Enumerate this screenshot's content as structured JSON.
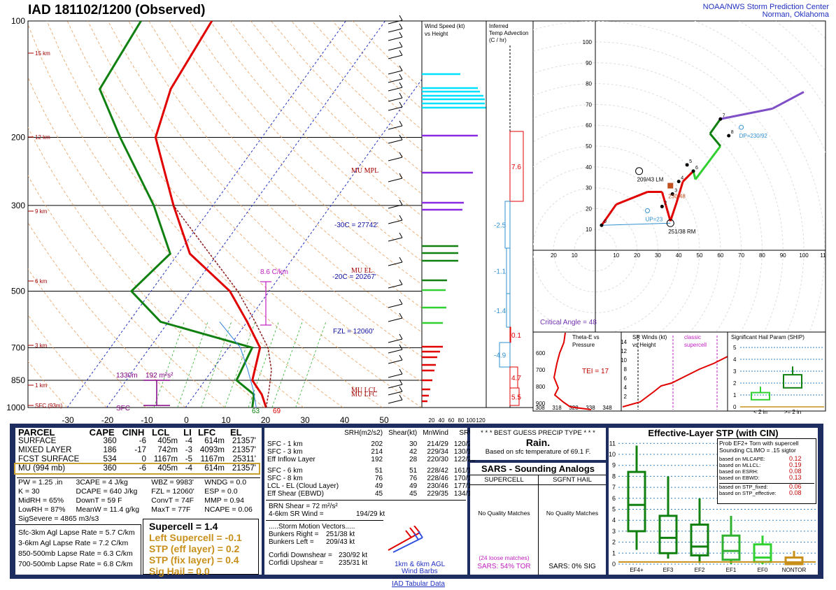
{
  "header": {
    "title": "IAD   181102/1200  (Observed)",
    "org_line1": "NOAA/NWS Storm Prediction Center",
    "org_line2": "Norman, Oklahoma"
  },
  "skewt": {
    "pressure_labels": [
      "100",
      "200",
      "300",
      "500",
      "700",
      "850",
      "1000"
    ],
    "height_labels": [
      "15 km",
      "12 km",
      "9 km",
      "6 km",
      "3 km",
      "1 km",
      "SFC (93m)"
    ],
    "temp_ticks": [
      "-30",
      "-20",
      "-10",
      "0",
      "10",
      "20",
      "30",
      "40",
      "50"
    ],
    "annotations": {
      "mu_mpl": "MU  MPL",
      "mu_el": "MU  EL",
      "mu_lcl": "MU  LCL",
      "mu_lfc": "MU  LFC",
      "t30": "-30C = 27742'",
      "t20": "-20C = 20267'",
      "fzl": "FZL = 12060'",
      "lapse": "8.6 C/km",
      "eff_inflow_left": "1330m",
      "eff_inflow_right": "192 m²s²",
      "sfc": "SFC",
      "sfc_t": "69",
      "sfc_td": "63"
    }
  },
  "wind_panel": {
    "title1": "Wind Speed (kt)",
    "title2": "vs Height",
    "axis": [
      "20",
      "40",
      "60",
      "80",
      "100",
      "120"
    ]
  },
  "adv_panel": {
    "title1": "Inferred",
    "title2": "Temp Advection",
    "title3": "(C / hr)",
    "values": [
      "7.6",
      "-2.5",
      "-1.1",
      "-1.4",
      "0.1",
      "-4.9",
      "4.7",
      "5.5"
    ]
  },
  "hodo": {
    "labels": [
      "209/43 LM",
      "251/38 RM",
      "230/48",
      "DP=230/92",
      "UP=23"
    ],
    "critical_angle": "Critical Angle = 48",
    "rings": [
      "10",
      "20",
      "30",
      "40",
      "50",
      "60",
      "70",
      "80",
      "90",
      "100"
    ],
    "xticks": [
      "20",
      "10",
      "10",
      "20",
      "30",
      "40",
      "50",
      "60",
      "70",
      "80",
      "90",
      "100",
      "110"
    ],
    "hgt": [
      "0",
      "2",
      "3",
      "4",
      "5",
      "6",
      "7",
      "8"
    ]
  },
  "theta": {
    "title1": "Theta-E vs",
    "title2": "Pressure",
    "tei": "TEI = 17",
    "press": [
      "600",
      "700",
      "800",
      "900"
    ],
    "temps": [
      "308",
      "318",
      "328",
      "338",
      "348"
    ]
  },
  "srwinds": {
    "title1": "SR Winds (kt)",
    "title2": "vs Height",
    "classic1": "classic",
    "classic2": "supercell",
    "h": [
      "14",
      "12",
      "10",
      "8",
      "6",
      "4",
      "2"
    ]
  },
  "ship": {
    "title": "Significant Hail Param (SHIP)",
    "y": [
      "5",
      "4",
      "3",
      "2",
      "1",
      "0"
    ],
    "x1": "< 2 in",
    "x2": ">= 2 in"
  },
  "parcel": {
    "headers": [
      "PARCEL",
      "CAPE",
      "CINH",
      "LCL",
      "LI",
      "LFC",
      "EL"
    ],
    "rows": [
      [
        "SURFACE",
        "360",
        "-6",
        "405m",
        "-4",
        "614m",
        "21357'"
      ],
      [
        "MIXED LAYER",
        "186",
        "-17",
        "742m",
        "-3",
        "4093m",
        "21357'"
      ],
      [
        "FCST SURFACE",
        "534",
        "0",
        "1167m",
        "-5",
        "1167m",
        "25311'"
      ],
      [
        "MU  (994 mb)",
        "360",
        "-6",
        "405m",
        "-4",
        "614m",
        "21357'"
      ]
    ],
    "idx": [
      [
        "PW = 1.25 .in",
        "3CAPE = 4 J/kg",
        "WBZ = 9983'",
        "WNDG = 0.0"
      ],
      [
        "K = 30",
        "DCAPE = 640 J/kg",
        "FZL = 12060'",
        "ESP = 0.0"
      ],
      [
        "MidRH = 65%",
        "DownT = 59 F",
        "ConvT = 74F",
        "MMP = 0.94"
      ],
      [
        "LowRH = 87%",
        "MeanW = 11.4 g/kg",
        "MaxT = 77F",
        "NCAPE = 0.06"
      ]
    ],
    "sigsevere": "SigSevere = 4865 m3/s3",
    "lapse": [
      [
        "Sfc-3km Agl Lapse Rate =",
        "5.7 C/km"
      ],
      [
        "3-6km Agl Lapse Rate =",
        "7.2 C/km"
      ],
      [
        "850-500mb Lapse Rate =",
        "6.3 C/km"
      ],
      [
        "700-500mb Lapse Rate =",
        "6.8 C/km"
      ]
    ],
    "composite": {
      "supercell": "Supercell = 1.4",
      "lsc": "Left Supercell = -0.1",
      "stp_eff": "STP (eff layer) = 0.2",
      "stp_fix": "STP (fix layer) = 0.4",
      "sighail": "Sig Hail = 0.0"
    }
  },
  "kinematics": {
    "headers": [
      "SRH(m2/s2)",
      "Shear(kt)",
      "MnWind",
      "SRW"
    ],
    "rows": [
      [
        "SFC - 1 km",
        "202",
        "30",
        "214/29",
        "120/23"
      ],
      [
        "SFC - 3 km",
        "214",
        "42",
        "229/34",
        "130/14"
      ],
      [
        "Eff Inflow Layer",
        "192",
        "28",
        "220/30",
        "122/20"
      ],
      [
        "",
        "",
        " ",
        "",
        ""
      ],
      [
        "SFC - 6 km",
        "51",
        "51",
        "228/42",
        "161/16"
      ],
      [
        "SFC - 8 km",
        "76",
        "76",
        "228/46",
        "170/17"
      ],
      [
        "LCL - EL (Cloud Layer)",
        "49",
        "49",
        "230/46",
        "177/17"
      ],
      [
        "Eff Shear (EBWD)",
        "45",
        "45",
        "229/35",
        "134/14"
      ]
    ],
    "brn": "BRN Shear =  72 m²/s²",
    "srwind": "4-6km SR Wind =",
    "srwind_v": "194/29 kt",
    "storm_title": ".....Storm Motion Vectors.....",
    "br": "Bunkers Right =",
    "br_v": "251/38 kt",
    "bl": "Bunkers Left =",
    "bl_v": "209/43 kt",
    "cd": "Corfidi Downshear =",
    "cd_v": "230/92 kt",
    "cu": "Corfidi Upshear =",
    "cu_v": "235/31 kt",
    "barb_label1": "1km & 6km AGL",
    "barb_label2": "Wind Barbs"
  },
  "precip": {
    "title": "* * * BEST GUESS PRECIP TYPE * * *",
    "type": "Rain.",
    "basis": "Based on sfc temperature of 69.1 F."
  },
  "sars": {
    "title": "SARS - Sounding Analogs",
    "col1": "SUPERCELL",
    "col2": "SGFNT HAIL",
    "nq1": "No Quality Matches",
    "nq2": "No Quality Matches",
    "loose": "(24 loose matches)",
    "tor": "SARS:  54% TOR",
    "sig": "SARS:  0% SIG"
  },
  "stp": {
    "title": "Effective-Layer STP (with CIN)",
    "prob1": "Prob EF2+ Torn with supercell",
    "prob2": "Sounding CLIMO = .15 sigtor",
    "items": [
      [
        "based on MLCAPE:",
        "0.12"
      ],
      [
        "based on MLLCL:",
        "0.19"
      ],
      [
        "based on ESRH:",
        "0.08"
      ],
      [
        "based on EBWD:",
        "0.13"
      ],
      [
        "based on STP_fixed:",
        "0.06"
      ],
      [
        "based on STP_effective:",
        "0.08"
      ]
    ],
    "y": [
      "11",
      "10",
      "9",
      "8",
      "7",
      "6",
      "5",
      "4",
      "3",
      "2",
      "1",
      "0"
    ],
    "cats": [
      "EF4+",
      "EF3",
      "EF2",
      "EF1",
      "EF0",
      "NONTOR"
    ]
  },
  "footer": "IAD Tabular Data",
  "chart_data": [
    {
      "type": "line",
      "title": "IAD   181102/1200  (Observed)",
      "xlabel": "Temperature (C)",
      "ylabel": "Pressure (mb)",
      "xlim": [
        -30,
        50
      ],
      "ylim": [
        1000,
        100
      ],
      "series": [
        {
          "name": "Temperature",
          "color": "#e00000",
          "points": [
            [
              20.5,
              1000
            ],
            [
              17,
              925
            ],
            [
              12,
              850
            ],
            [
              8,
              700
            ],
            [
              0,
              600
            ],
            [
              -10,
              500
            ],
            [
              -27,
              400
            ],
            [
              -40,
              300
            ],
            [
              -57,
              200
            ],
            [
              -62,
              150
            ],
            [
              -64,
              100
            ]
          ]
        },
        {
          "name": "Dewpoint",
          "color": "#108010",
          "points": [
            [
              17,
              1000
            ],
            [
              15,
              925
            ],
            [
              8,
              850
            ],
            [
              6,
              700
            ],
            [
              -22,
              600
            ],
            [
              -35,
              500
            ],
            [
              -32,
              400
            ],
            [
              -45,
              300
            ],
            [
              -66,
              200
            ],
            [
              -80,
              150
            ],
            [
              -82,
              100
            ]
          ]
        }
      ]
    },
    {
      "type": "line",
      "title": "Hodograph",
      "points_kt": [
        [
          3,
          12
        ],
        [
          10,
          22
        ],
        [
          25,
          28
        ],
        [
          32,
          28
        ],
        [
          36,
          14
        ],
        [
          39,
          23
        ],
        [
          42,
          33
        ],
        [
          47,
          38
        ],
        [
          48,
          34
        ],
        [
          60,
          50
        ],
        [
          55,
          56
        ],
        [
          60,
          63
        ],
        [
          85,
          68
        ],
        [
          100,
          76
        ]
      ]
    },
    {
      "type": "box",
      "title": "Effective-Layer STP (with CIN)",
      "categories": [
        "EF4+",
        "EF3",
        "EF2",
        "EF1",
        "EF0",
        "NONTOR"
      ],
      "boxes": [
        [
          1.3,
          3.0,
          5.4,
          8.4,
          10.8
        ],
        [
          0.5,
          1.0,
          2.4,
          4.4,
          8.0
        ],
        [
          0.1,
          0.8,
          1.6,
          3.6,
          6.0
        ],
        [
          0,
          0.4,
          1.2,
          2.6,
          4.4
        ],
        [
          0,
          0.2,
          0.6,
          1.8,
          2.6
        ],
        [
          0,
          0,
          0.1,
          0.6,
          1.2
        ]
      ]
    }
  ]
}
